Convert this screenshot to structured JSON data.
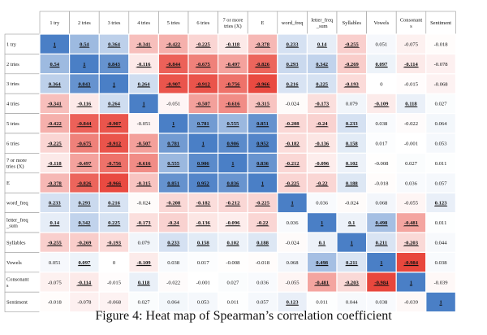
{
  "chart_data": {
    "type": "heatmap",
    "title": "",
    "labels": [
      "1 try",
      "2 tries",
      "3 tries",
      "4 tries",
      "5 tries",
      "6 tries",
      "7 or more tries (X)",
      "E",
      "word_freq",
      "letter_freq_sum",
      "Syllables",
      "Vowels",
      "Consonants",
      "Sentiment"
    ],
    "display_labels": {
      "columns": [
        [
          "1 try"
        ],
        [
          "2 tries"
        ],
        [
          "3 tries"
        ],
        [
          "4 tries"
        ],
        [
          "5 tries"
        ],
        [
          "6 tries"
        ],
        [
          "7 or more",
          "tries (X)"
        ],
        [
          "E"
        ],
        [
          "word_freq"
        ],
        [
          "letter_freq",
          "_sum"
        ],
        [
          "Syllables"
        ],
        [
          "Vowels"
        ],
        [
          "Consonant",
          "s"
        ],
        [
          "Sentiment"
        ]
      ],
      "rows": [
        [
          "1 try"
        ],
        [
          "2 tries"
        ],
        [
          "3 tries"
        ],
        [
          "4 tries"
        ],
        [
          "5 tries"
        ],
        [
          "6 tries"
        ],
        [
          "7 or more",
          "tries (X)"
        ],
        [
          "E"
        ],
        [
          "word_freq"
        ],
        [
          "letter_freq",
          "_sum"
        ],
        [
          "Syllables"
        ],
        [
          "Vowels"
        ],
        [
          "Consonant",
          "s"
        ],
        [
          "Sentiment"
        ]
      ]
    },
    "value_labels": [
      [
        "1",
        "0.54",
        "0.364",
        "-0.341",
        "-0.422",
        "-0.225",
        "-0.118",
        "-0.378",
        "0.233",
        "0.14",
        "-0.255",
        "0.051",
        "-0.075",
        "-0.018"
      ],
      [
        "0.54",
        "1",
        "0.843",
        "-0.116",
        "-0.844",
        "-0.675",
        "-0.497",
        "-0.826",
        "0.293",
        "0.342",
        "-0.269",
        "0.097",
        "-0.114",
        "-0.078"
      ],
      [
        "0.364",
        "0.843",
        "1",
        "0.264",
        "-0.907",
        "-0.912",
        "-0.756",
        "-0.966",
        "0.216",
        "0.225",
        "-0.193",
        "0",
        "-0.015",
        "-0.068"
      ],
      [
        "-0.341",
        "-0.116",
        "0.264",
        "1",
        "-0.051",
        "-0.507",
        "-0.616",
        "-0.315",
        "-0.024",
        "-0.173",
        "0.079",
        "-0.109",
        "0.118",
        "0.027"
      ],
      [
        "-0.422",
        "-0.844",
        "-0.907",
        "-0.051",
        "1",
        "0.781",
        "0.555",
        "0.851",
        "-0.208",
        "-0.24",
        "0.233",
        "0.038",
        "-0.022",
        "0.064"
      ],
      [
        "-0.225",
        "-0.675",
        "-0.912",
        "-0.507",
        "0.781",
        "1",
        "0.906",
        "0.952",
        "-0.182",
        "-0.136",
        "0.158",
        "0.017",
        "-0.001",
        "0.053"
      ],
      [
        "-0.118",
        "-0.497",
        "-0.756",
        "-0.616",
        "0.555",
        "0.906",
        "1",
        "0.836",
        "-0.212",
        "-0.096",
        "0.102",
        "-0.008",
        "0.027",
        "0.011"
      ],
      [
        "-0.378",
        "-0.826",
        "-0.966",
        "-0.315",
        "0.851",
        "0.952",
        "0.836",
        "1",
        "-0.225",
        "-0.22",
        "0.188",
        "-0.018",
        "0.036",
        "0.057"
      ],
      [
        "0.233",
        "0.293",
        "0.216",
        "-0.024",
        "-0.208",
        "-0.182",
        "-0.212",
        "-0.225",
        "1",
        "0.036",
        "-0.024",
        "0.068",
        "-0.055",
        "0.123"
      ],
      [
        "0.14",
        "0.342",
        "0.225",
        "-0.173",
        "-0.24",
        "-0.136",
        "-0.096",
        "-0.22",
        "0.036",
        "1",
        "0.1",
        "0.498",
        "-0.481",
        "0.011"
      ],
      [
        "-0.255",
        "-0.269",
        "-0.193",
        "0.079",
        "0.233",
        "0.158",
        "0.102",
        "0.188",
        "-0.024",
        "0.1",
        "1",
        "0.211",
        "-0.203",
        "0.044"
      ],
      [
        "0.051",
        "0.097",
        "0",
        "-0.109",
        "0.038",
        "0.017",
        "-0.008",
        "-0.018",
        "0.068",
        "0.498",
        "0.211",
        "1",
        "-0.984",
        "0.038"
      ],
      [
        "-0.075",
        "-0.114",
        "-0.015",
        "0.118",
        "-0.022",
        "-0.001",
        "0.027",
        "0.036",
        "-0.055",
        "-0.481",
        "-0.203",
        "-0.984",
        "1",
        "-0.039"
      ],
      [
        "-0.018",
        "-0.078",
        "-0.068",
        "0.027",
        "0.064",
        "0.053",
        "0.011",
        "0.057",
        "0.123",
        "0.011",
        "0.044",
        "0.038",
        "-0.039",
        "1"
      ]
    ],
    "significant": [
      [
        1,
        1,
        1,
        1,
        1,
        1,
        1,
        1,
        1,
        1,
        1,
        0,
        0,
        0
      ],
      [
        1,
        1,
        1,
        1,
        1,
        1,
        1,
        1,
        1,
        1,
        1,
        1,
        1,
        0
      ],
      [
        1,
        1,
        1,
        1,
        1,
        1,
        1,
        1,
        1,
        1,
        1,
        0,
        0,
        0
      ],
      [
        1,
        1,
        1,
        1,
        0,
        1,
        1,
        1,
        0,
        1,
        0,
        1,
        1,
        0
      ],
      [
        1,
        1,
        1,
        0,
        1,
        1,
        1,
        1,
        1,
        1,
        1,
        0,
        0,
        0
      ],
      [
        1,
        1,
        1,
        1,
        1,
        1,
        1,
        1,
        1,
        1,
        1,
        0,
        0,
        0
      ],
      [
        1,
        1,
        1,
        1,
        1,
        1,
        1,
        1,
        1,
        1,
        1,
        0,
        0,
        0
      ],
      [
        1,
        1,
        1,
        1,
        1,
        1,
        1,
        1,
        1,
        1,
        1,
        0,
        0,
        0
      ],
      [
        1,
        1,
        1,
        0,
        1,
        1,
        1,
        1,
        1,
        0,
        0,
        0,
        0,
        1
      ],
      [
        1,
        1,
        1,
        1,
        1,
        1,
        1,
        1,
        0,
        1,
        1,
        1,
        1,
        0
      ],
      [
        1,
        1,
        1,
        0,
        1,
        1,
        1,
        1,
        0,
        1,
        1,
        1,
        1,
        0
      ],
      [
        0,
        1,
        0,
        1,
        0,
        0,
        0,
        0,
        0,
        1,
        1,
        1,
        1,
        0
      ],
      [
        0,
        1,
        0,
        1,
        0,
        0,
        0,
        0,
        0,
        1,
        1,
        1,
        1,
        0
      ],
      [
        0,
        0,
        0,
        0,
        0,
        0,
        0,
        0,
        1,
        0,
        0,
        0,
        0,
        1
      ]
    ],
    "color_scale": {
      "negative": "#e8443a",
      "zero": "#ffffff",
      "positive": "#4a7fc6",
      "range": [
        -1,
        1
      ]
    },
    "text_color": "#111111",
    "border_color": "#9a9a9a"
  },
  "caption": "Figure 4: Heat map of Spearman’s correlation coefficient"
}
